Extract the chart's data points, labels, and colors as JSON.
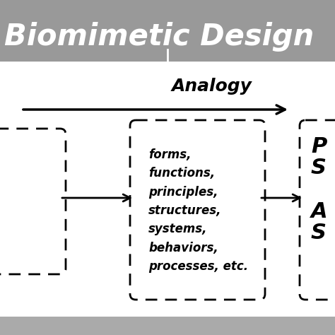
{
  "title": "Biomimetic Design",
  "title_bg_color": "#999999",
  "title_text_color": "#ffffff",
  "bg_color": "#ffffff",
  "border_bg_color": "#aaaaaa",
  "analogy_label": "Analogy",
  "box_text_lines": [
    "forms,",
    "functions,",
    "principles,",
    "structures,",
    "systems,",
    "behaviors,",
    "processes, etc."
  ],
  "figsize": [
    4.74,
    4.74
  ],
  "dpi": 100
}
